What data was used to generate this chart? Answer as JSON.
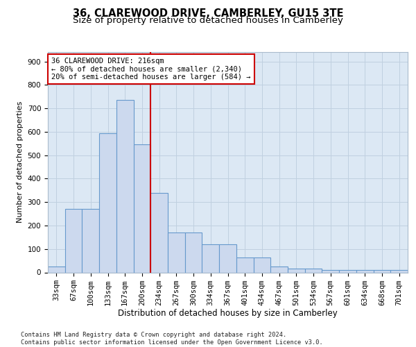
{
  "title_line1": "36, CLAREWOOD DRIVE, CAMBERLEY, GU15 3TE",
  "title_line2": "Size of property relative to detached houses in Camberley",
  "xlabel": "Distribution of detached houses by size in Camberley",
  "ylabel": "Number of detached properties",
  "categories": [
    "33sqm",
    "67sqm",
    "100sqm",
    "133sqm",
    "167sqm",
    "200sqm",
    "234sqm",
    "267sqm",
    "300sqm",
    "334sqm",
    "367sqm",
    "401sqm",
    "434sqm",
    "467sqm",
    "501sqm",
    "534sqm",
    "567sqm",
    "601sqm",
    "634sqm",
    "668sqm",
    "701sqm"
  ],
  "values": [
    25,
    270,
    270,
    595,
    735,
    545,
    340,
    170,
    170,
    120,
    120,
    65,
    65,
    25,
    15,
    15,
    10,
    10,
    10,
    10,
    10
  ],
  "bar_color": "#ccd9ee",
  "bar_edge_color": "#6699cc",
  "vline_color": "#cc0000",
  "annotation_text": "36 CLAREWOOD DRIVE: 216sqm\n← 80% of detached houses are smaller (2,340)\n20% of semi-detached houses are larger (584) →",
  "annotation_box_color": "#cc0000",
  "grid_color": "#c0d0e0",
  "background_color": "#dce8f4",
  "ylim": [
    0,
    940
  ],
  "yticks": [
    0,
    100,
    200,
    300,
    400,
    500,
    600,
    700,
    800,
    900
  ],
  "footer_text": "Contains HM Land Registry data © Crown copyright and database right 2024.\nContains public sector information licensed under the Open Government Licence v3.0.",
  "title_fontsize": 10.5,
  "subtitle_fontsize": 9.5,
  "tick_fontsize": 7.5,
  "ylabel_fontsize": 8,
  "xlabel_fontsize": 8.5,
  "annotation_fontsize": 7.5
}
